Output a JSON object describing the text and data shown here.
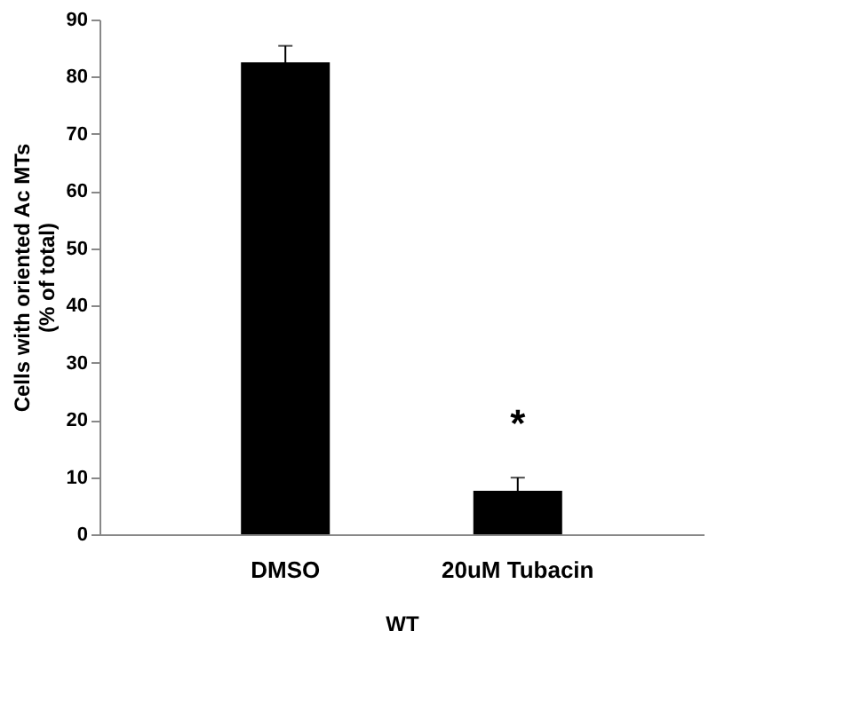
{
  "chart_data": {
    "type": "bar",
    "categories": [
      "DMSO",
      "20uM Tubacin"
    ],
    "values": [
      82.5,
      7.6
    ],
    "errors": [
      2.9,
      2.3
    ],
    "color": "#000000",
    "xlabel": "WT",
    "ylabel": "Cells with oriented Ac MTs\n(% of total)",
    "ylim": [
      0,
      90
    ],
    "yticks": [
      0,
      10,
      20,
      30,
      40,
      50,
      60,
      70,
      80,
      90
    ],
    "annotations": [
      "*"
    ],
    "grid": false
  }
}
